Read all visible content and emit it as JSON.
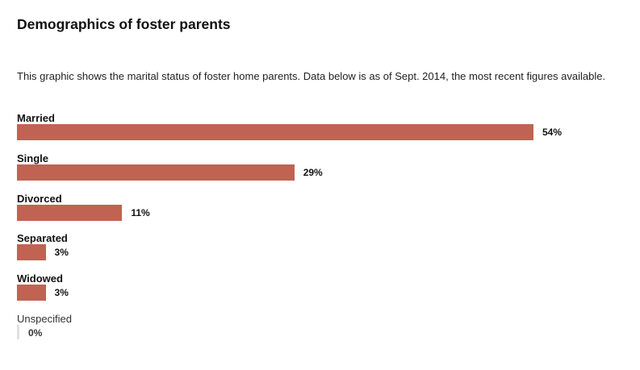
{
  "title": "Demographics of foster parents",
  "subtitle": "This graphic shows the marital status of foster home parents. Data below is as of Sept. 2014, the most recent figures available.",
  "colors": {
    "bar": "#c06353",
    "zero_bar": "#e0e0e0"
  },
  "chart_data": {
    "type": "bar",
    "orientation": "horizontal",
    "categories": [
      "Married",
      "Single",
      "Divorced",
      "Separated",
      "Widowed",
      "Unspecified"
    ],
    "values": [
      54,
      29,
      11,
      3,
      3,
      0
    ],
    "value_labels": [
      "54%",
      "29%",
      "11%",
      "3%",
      "3%",
      "0%"
    ],
    "unit": "%",
    "title": "Demographics of foster parents",
    "xlabel": "",
    "ylabel": "",
    "xlim": [
      0,
      54
    ],
    "grid": false,
    "legend": "none"
  }
}
